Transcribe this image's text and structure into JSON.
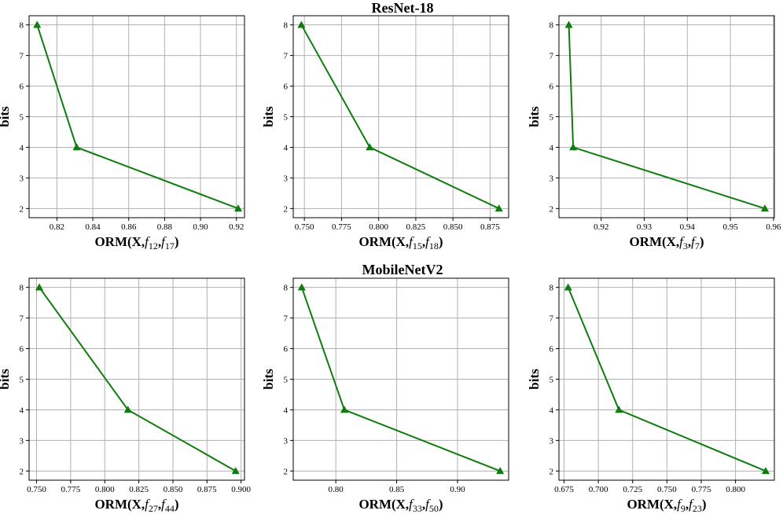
{
  "titles": [
    "ResNet-18",
    "MobileNetV2"
  ],
  "colors": {
    "line": "#107c10",
    "grid": "#b0b0b0"
  },
  "chart_data": [
    {
      "type": "line",
      "group": "ResNet-18",
      "xlabel_parts": [
        "ORM(X,",
        "f",
        "12",
        ",",
        "f",
        "17",
        ")"
      ],
      "ylabel": "bits",
      "x": [
        0.809,
        0.831,
        0.921
      ],
      "y": [
        8,
        4,
        2
      ],
      "xlim": [
        0.8045,
        0.9245
      ],
      "ylim": [
        1.7,
        8.3
      ],
      "xticks": [
        0.82,
        0.84,
        0.86,
        0.88,
        0.9,
        0.92
      ],
      "xtick_labels": [
        "0.82",
        "0.84",
        "0.86",
        "0.88",
        "0.90",
        "0.92"
      ],
      "yticks": [
        2,
        3,
        4,
        5,
        6,
        7,
        8
      ],
      "ytick_labels": [
        "2",
        "3",
        "4",
        "5",
        "6",
        "7",
        "8"
      ],
      "marker": "triangle"
    },
    {
      "type": "line",
      "group": "ResNet-18",
      "xlabel_parts": [
        "ORM(X,",
        "f",
        "15",
        ",",
        "f",
        "18",
        ")"
      ],
      "ylabel": "bits",
      "x": [
        0.748,
        0.794,
        0.881
      ],
      "y": [
        8,
        4,
        2
      ],
      "xlim": [
        0.7425,
        0.8875
      ],
      "ylim": [
        1.7,
        8.3
      ],
      "xticks": [
        0.75,
        0.775,
        0.8,
        0.825,
        0.85,
        0.875
      ],
      "xtick_labels": [
        "0.750",
        "0.775",
        "0.800",
        "0.825",
        "0.850",
        "0.875"
      ],
      "yticks": [
        2,
        3,
        4,
        5,
        6,
        7,
        8
      ],
      "ytick_labels": [
        "2",
        "3",
        "4",
        "5",
        "6",
        "7",
        "8"
      ],
      "marker": "triangle"
    },
    {
      "type": "line",
      "group": "ResNet-18",
      "xlabel_parts": [
        "ORM(X,",
        "f",
        "3",
        ",",
        "f",
        "7",
        ")"
      ],
      "ylabel": "bits",
      "x": [
        0.9125,
        0.9135,
        0.958
      ],
      "y": [
        8,
        4,
        2
      ],
      "xlim": [
        0.9102,
        0.9602
      ],
      "ylim": [
        1.7,
        8.3
      ],
      "xticks": [
        0.92,
        0.93,
        0.94,
        0.95,
        0.96
      ],
      "xtick_labels": [
        "0.92",
        "0.93",
        "0.94",
        "0.95",
        "0.96"
      ],
      "yticks": [
        2,
        3,
        4,
        5,
        6,
        7,
        8
      ],
      "ytick_labels": [
        "2",
        "3",
        "4",
        "5",
        "6",
        "7",
        "8"
      ],
      "marker": "triangle"
    },
    {
      "type": "line",
      "group": "MobileNetV2",
      "xlabel_parts": [
        "ORM(X,",
        "f",
        "27",
        ",",
        "f",
        "44",
        ")"
      ],
      "ylabel": "bits",
      "x": [
        0.752,
        0.817,
        0.896
      ],
      "y": [
        8,
        4,
        2
      ],
      "xlim": [
        0.7445,
        0.9025
      ],
      "ylim": [
        1.7,
        8.3
      ],
      "xticks": [
        0.75,
        0.775,
        0.8,
        0.825,
        0.85,
        0.875,
        0.9
      ],
      "xtick_labels": [
        "0.750",
        "0.775",
        "0.800",
        "0.825",
        "0.850",
        "0.875",
        "0.900"
      ],
      "yticks": [
        2,
        3,
        4,
        5,
        6,
        7,
        8
      ],
      "ytick_labels": [
        "2",
        "3",
        "4",
        "5",
        "6",
        "7",
        "8"
      ],
      "marker": "triangle"
    },
    {
      "type": "line",
      "group": "MobileNetV2",
      "xlabel_parts": [
        "ORM(X,",
        "f",
        "33",
        ",",
        "f",
        "50",
        ")"
      ],
      "ylabel": "bits",
      "x": [
        0.772,
        0.807,
        0.935
      ],
      "y": [
        8,
        4,
        2
      ],
      "xlim": [
        0.765,
        0.942
      ],
      "ylim": [
        1.7,
        8.3
      ],
      "xticks": [
        0.8,
        0.85,
        0.9
      ],
      "xtick_labels": [
        "0.80",
        "0.85",
        "0.90"
      ],
      "yticks": [
        2,
        3,
        4,
        5,
        6,
        7,
        8
      ],
      "ytick_labels": [
        "2",
        "3",
        "4",
        "5",
        "6",
        "7",
        "8"
      ],
      "marker": "triangle"
    },
    {
      "type": "line",
      "group": "MobileNetV2",
      "xlabel_parts": [
        "ORM(X,",
        "f",
        "9",
        ",",
        "f",
        "23",
        ")"
      ],
      "ylabel": "bits",
      "x": [
        0.678,
        0.715,
        0.822
      ],
      "y": [
        8,
        4,
        2
      ],
      "xlim": [
        0.6713,
        0.8283
      ],
      "ylim": [
        1.7,
        8.3
      ],
      "xticks": [
        0.675,
        0.7,
        0.725,
        0.75,
        0.775,
        0.8
      ],
      "xtick_labels": [
        "0.675",
        "0.700",
        "0.725",
        "0.750",
        "0.775",
        "0.800"
      ],
      "yticks": [
        2,
        3,
        4,
        5,
        6,
        7,
        8
      ],
      "ytick_labels": [
        "2",
        "3",
        "4",
        "5",
        "6",
        "7",
        "8"
      ],
      "marker": "triangle"
    }
  ]
}
